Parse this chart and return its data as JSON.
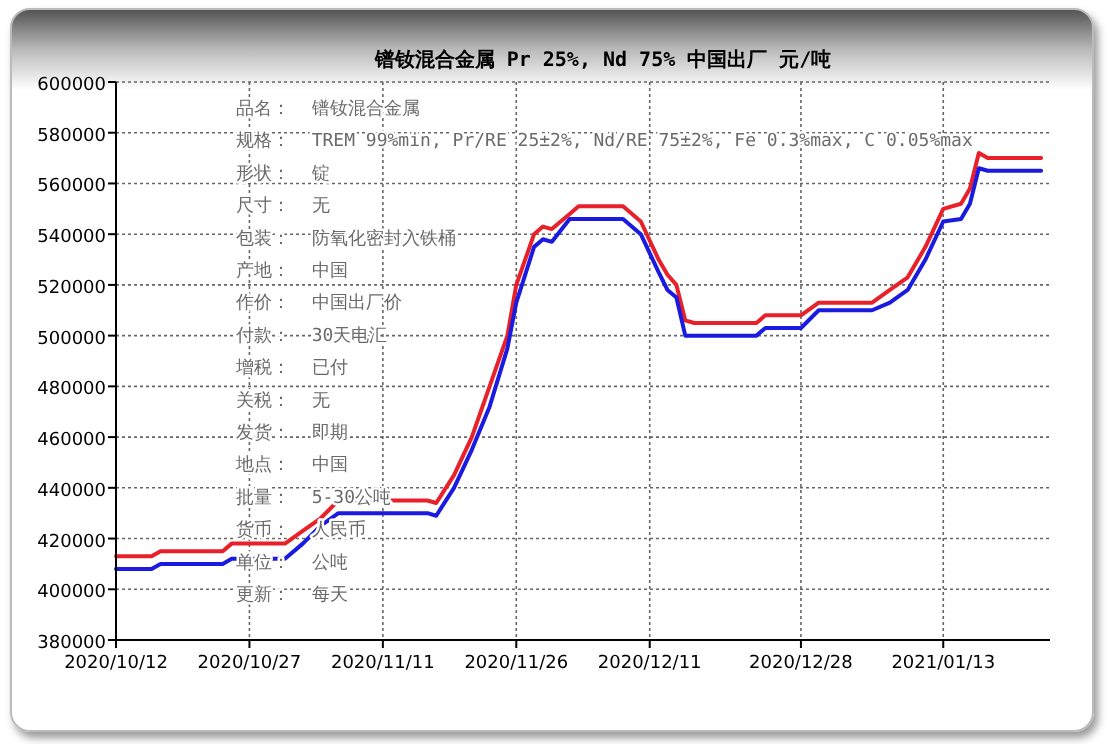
{
  "chart_data": {
    "type": "line",
    "title": "镨钕混合金属 Pr 25%, Nd 75% 中国出厂 元/吨",
    "x": [
      "2020-10-12",
      "2020-10-16",
      "2020-10-17",
      "2020-10-24",
      "2020-10-25",
      "2020-10-31",
      "2020-11-02",
      "2020-11-04",
      "2020-11-06",
      "2020-11-16",
      "2020-11-17",
      "2020-11-19",
      "2020-11-21",
      "2020-11-23",
      "2020-11-25",
      "2020-11-26",
      "2020-11-28",
      "2020-11-29",
      "2020-11-30",
      "2020-12-02",
      "2020-12-03",
      "2020-12-08",
      "2020-12-10",
      "2020-12-12",
      "2020-12-13",
      "2020-12-14",
      "2020-12-15",
      "2020-12-16",
      "2020-12-23",
      "2020-12-24",
      "2020-12-28",
      "2020-12-30",
      "2021-01-05",
      "2021-01-07",
      "2021-01-09",
      "2021-01-11",
      "2021-01-13",
      "2021-01-15",
      "2021-01-16",
      "2021-01-17",
      "2021-01-18",
      "2021-01-24"
    ],
    "series": [
      {
        "color": "#e8202a",
        "values": [
          413000,
          413000,
          415000,
          415000,
          418000,
          418000,
          423000,
          428000,
          435000,
          435000,
          434000,
          445000,
          460000,
          480000,
          500000,
          520000,
          540000,
          543000,
          542000,
          548000,
          551000,
          551000,
          545000,
          530000,
          524000,
          520000,
          506000,
          505000,
          505000,
          508000,
          508000,
          513000,
          513000,
          518000,
          523000,
          535000,
          550000,
          552000,
          558000,
          572000,
          570000,
          570000
        ]
      },
      {
        "color": "#1a1ae0",
        "values": [
          408000,
          408000,
          410000,
          410000,
          412000,
          412000,
          418000,
          425000,
          430000,
          430000,
          429000,
          440000,
          455000,
          472000,
          495000,
          513000,
          535000,
          538000,
          537000,
          546000,
          546000,
          546000,
          540000,
          525000,
          518000,
          515000,
          500000,
          500000,
          500000,
          503000,
          503000,
          510000,
          510000,
          513000,
          518000,
          530000,
          545000,
          546000,
          552000,
          566000,
          565000,
          565000
        ]
      }
    ],
    "xlim": [
      "2020-10-12",
      "2021-01-25"
    ],
    "xticks": [
      {
        "value": "2020-10-12",
        "label": "2020/10/12"
      },
      {
        "value": "2020-10-27",
        "label": "2020/10/27"
      },
      {
        "value": "2020-11-11",
        "label": "2020/11/11"
      },
      {
        "value": "2020-11-26",
        "label": "2020/11/26"
      },
      {
        "value": "2020-12-11",
        "label": "2020/12/11"
      },
      {
        "value": "2020-12-28",
        "label": "2020/12/28"
      },
      {
        "value": "2021-01-13",
        "label": "2021/01/13"
      }
    ],
    "ylim": [
      380000,
      600000
    ],
    "yticks": [
      380000,
      400000,
      420000,
      440000,
      460000,
      480000,
      500000,
      520000,
      540000,
      560000,
      580000,
      600000
    ],
    "grid": true,
    "line_style": "solid",
    "annotations": [
      "品名：  镨钕混合金属",
      "规格：  TREM 99%min, Pr/RE 25±2%, Nd/RE 75±2%, Fe 0.3%max, C 0.05%max",
      "形状：  锭",
      "尺寸：  无",
      "包装：  防氧化密封入铁桶",
      "产地：  中国",
      "作价：  中国出厂价",
      "付款：  30天电汇",
      "增税：  已付",
      "关税：  无",
      "发货：  即期",
      "地点：  中国",
      "批量：  5-30公吨",
      "货币：  人民币",
      "单位：  公吨",
      "更新：  每天"
    ]
  }
}
